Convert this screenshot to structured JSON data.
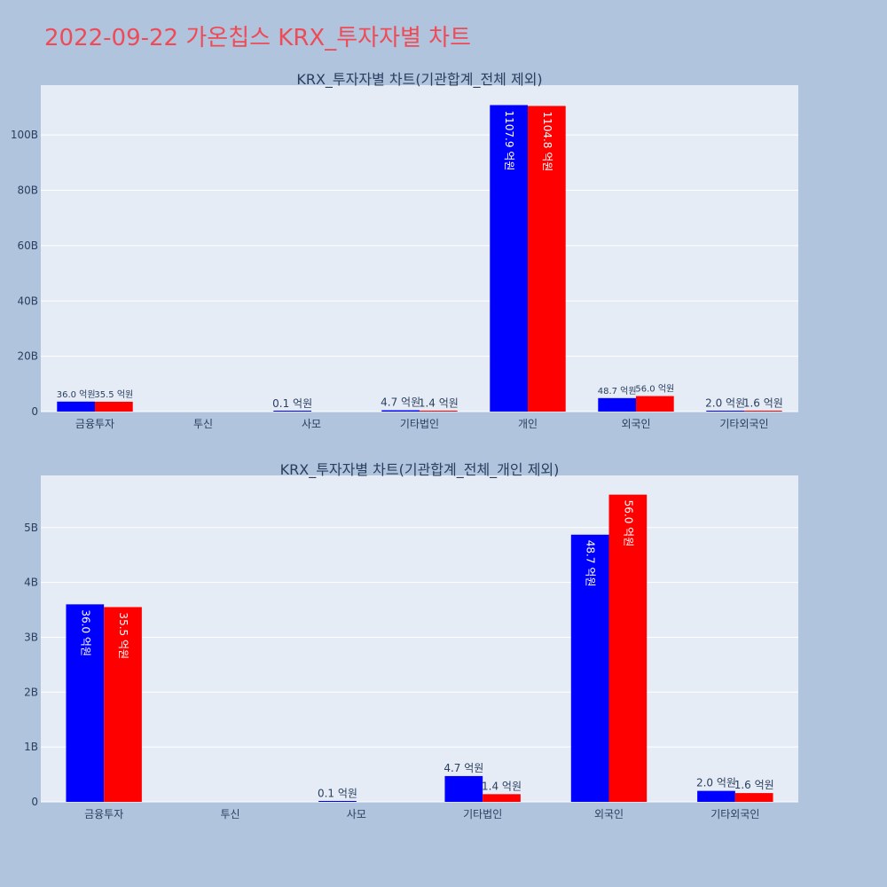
{
  "page": {
    "title": "2022-09-22 가온칩스 KRX_투자자별 차트"
  },
  "colors": {
    "background": "#b0c4de",
    "plot_bg": "#e5ecf6",
    "grid": "#ffffff",
    "title": "#ee4b57",
    "text": "#2a3f5f",
    "buy": "#0000ff",
    "sell": "#ff0000"
  },
  "chart_data": [
    {
      "type": "bar",
      "title": "KRX_투자자별 차트(기관합계_전체 제외)",
      "categories": [
        "금융투자",
        "투신",
        "사모",
        "기타법인",
        "개인",
        "외국인",
        "기타외국인"
      ],
      "ylim": [
        0,
        118
      ],
      "yticks": [
        0,
        20,
        40,
        60,
        80,
        100
      ],
      "ytick_labels": [
        "0",
        "20B",
        "40B",
        "60B",
        "80B",
        "100B"
      ],
      "grid": true,
      "series": [
        {
          "color": "#0000ff",
          "values": [
            3.6,
            0,
            0.01,
            0.47,
            110.79,
            4.87,
            0.2
          ],
          "labels": [
            "36.0 억원",
            "",
            "0.1 억원",
            "4.7 억원",
            "1107.9 억원",
            "48.7 억원",
            "2.0 억원"
          ]
        },
        {
          "color": "#ff0000",
          "values": [
            3.55,
            0,
            0,
            0.14,
            110.48,
            5.6,
            0.16
          ],
          "labels": [
            "35.5 억원",
            "",
            "",
            "1.4 억원",
            "1104.8 억원",
            "56.0 억원",
            "1.6 억원"
          ]
        }
      ]
    },
    {
      "type": "bar",
      "title": "KRX_투자자별 차트(기관합계_전체_개인 제외)",
      "categories": [
        "금융투자",
        "투신",
        "사모",
        "기타법인",
        "외국인",
        "기타외국인"
      ],
      "ylim": [
        0,
        5.95
      ],
      "yticks": [
        0,
        1,
        2,
        3,
        4,
        5
      ],
      "ytick_labels": [
        "0",
        "1B",
        "2B",
        "3B",
        "4B",
        "5B"
      ],
      "grid": true,
      "series": [
        {
          "color": "#0000ff",
          "values": [
            3.6,
            0,
            0.01,
            0.47,
            4.87,
            0.2
          ],
          "labels": [
            "36.0 억원",
            "",
            "0.1 억원",
            "4.7 억원",
            "48.7 억원",
            "2.0 억원"
          ]
        },
        {
          "color": "#ff0000",
          "values": [
            3.55,
            0,
            0,
            0.14,
            5.6,
            0.16
          ],
          "labels": [
            "35.5 억원",
            "",
            "",
            "1.4 억원",
            "56.0 억원",
            "1.6 억원"
          ]
        }
      ]
    }
  ]
}
